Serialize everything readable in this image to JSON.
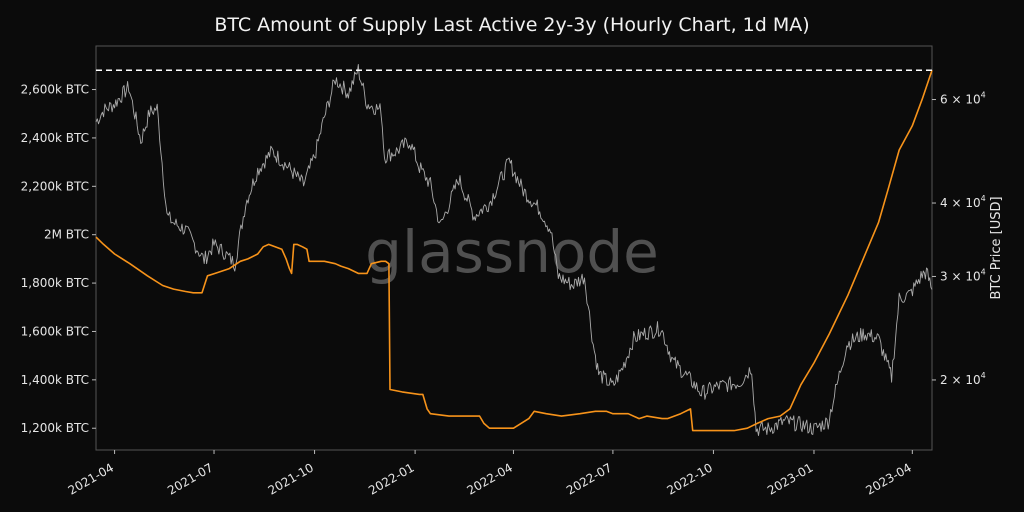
{
  "chart_data": {
    "type": "line",
    "title": "BTC Amount of Supply Last Active 2y-3y (Hourly Chart, 1d MA)",
    "watermark": "glassnode",
    "xlabel": "",
    "x_tick_labels": [
      "2021-04",
      "2021-07",
      "2021-10",
      "2022-01",
      "2022-04",
      "2022-07",
      "2022-10",
      "2023-01",
      "2023-04"
    ],
    "x_range": [
      "2021-03-15",
      "2023-04-19"
    ],
    "y_left": {
      "label": "",
      "range": [
        1110000,
        2780000
      ],
      "ticks": [
        {
          "value": 1200000,
          "label": "1,200k BTC"
        },
        {
          "value": 1400000,
          "label": "1,400k BTC"
        },
        {
          "value": 1600000,
          "label": "1,600k BTC"
        },
        {
          "value": 1800000,
          "label": "1,800k BTC"
        },
        {
          "value": 2000000,
          "label": "2M BTC"
        },
        {
          "value": 2200000,
          "label": "2,200k BTC"
        },
        {
          "value": 2400000,
          "label": "2,400k BTC"
        },
        {
          "value": 2600000,
          "label": "2,600k BTC"
        }
      ]
    },
    "y_right": {
      "label": "BTC Price [USD]",
      "scale": "log",
      "range": [
        15200,
        74000
      ],
      "ticks": [
        {
          "value": 20000,
          "base": "2",
          "exp": "4"
        },
        {
          "value": 30000,
          "base": "3",
          "exp": "4"
        },
        {
          "value": 40000,
          "base": "4",
          "exp": "4"
        },
        {
          "value": 60000,
          "base": "6",
          "exp": "4"
        }
      ]
    },
    "reference_line": {
      "value": 2680000,
      "style": "dashed",
      "color": "#ffffff"
    },
    "grid": false,
    "legend": "none",
    "series": [
      {
        "axis": "left",
        "color": "#f7931a",
        "x": [
          "2021-03-15",
          "2021-03-22",
          "2021-04-01",
          "2021-04-15",
          "2021-05-01",
          "2021-05-15",
          "2021-05-25",
          "2021-06-05",
          "2021-06-12",
          "2021-06-20",
          "2021-06-25",
          "2021-07-02",
          "2021-07-15",
          "2021-07-25",
          "2021-08-01",
          "2021-08-10",
          "2021-08-15",
          "2021-08-20",
          "2021-09-01",
          "2021-09-05",
          "2021-09-08",
          "2021-09-10",
          "2021-09-12",
          "2021-09-15",
          "2021-09-20",
          "2021-09-24",
          "2021-09-26",
          "2021-10-01",
          "2021-10-10",
          "2021-10-20",
          "2021-10-25",
          "2021-11-01",
          "2021-11-10",
          "2021-11-18",
          "2021-11-22",
          "2021-12-01",
          "2021-12-05",
          "2021-12-08",
          "2021-12-09",
          "2021-12-20",
          "2022-01-05",
          "2022-01-08",
          "2022-01-12",
          "2022-01-15",
          "2022-02-01",
          "2022-02-15",
          "2022-03-01",
          "2022-03-05",
          "2022-03-10",
          "2022-03-20",
          "2022-04-01",
          "2022-04-15",
          "2022-04-20",
          "2022-05-01",
          "2022-05-15",
          "2022-06-01",
          "2022-06-15",
          "2022-06-25",
          "2022-07-01",
          "2022-07-15",
          "2022-07-25",
          "2022-08-01",
          "2022-08-15",
          "2022-08-20",
          "2022-09-01",
          "2022-09-10",
          "2022-09-12",
          "2022-09-15",
          "2022-10-01",
          "2022-10-20",
          "2022-11-01",
          "2022-11-10",
          "2022-11-20",
          "2022-12-01",
          "2022-12-10",
          "2022-12-20",
          "2023-01-01",
          "2023-01-15",
          "2023-02-01",
          "2023-02-15",
          "2023-03-01",
          "2023-03-10",
          "2023-03-20",
          "2023-04-01",
          "2023-04-10",
          "2023-04-19"
        ],
        "values": [
          1990000,
          1960000,
          1920000,
          1880000,
          1830000,
          1790000,
          1775000,
          1765000,
          1760000,
          1760000,
          1830000,
          1840000,
          1860000,
          1890000,
          1900000,
          1920000,
          1950000,
          1960000,
          1940000,
          1900000,
          1860000,
          1840000,
          1960000,
          1960000,
          1950000,
          1940000,
          1890000,
          1890000,
          1890000,
          1880000,
          1870000,
          1860000,
          1840000,
          1840000,
          1880000,
          1890000,
          1890000,
          1880000,
          1360000,
          1350000,
          1340000,
          1340000,
          1280000,
          1260000,
          1250000,
          1250000,
          1250000,
          1220000,
          1200000,
          1200000,
          1200000,
          1240000,
          1270000,
          1260000,
          1250000,
          1260000,
          1270000,
          1270000,
          1260000,
          1260000,
          1240000,
          1250000,
          1240000,
          1240000,
          1260000,
          1280000,
          1190000,
          1190000,
          1190000,
          1190000,
          1200000,
          1220000,
          1240000,
          1250000,
          1280000,
          1380000,
          1470000,
          1590000,
          1750000,
          1900000,
          2050000,
          2190000,
          2350000,
          2450000,
          2560000,
          2680000
        ]
      },
      {
        "axis": "right",
        "color": "#aaaaaa",
        "x": [
          "2021-03-15",
          "2021-03-22",
          "2021-04-01",
          "2021-04-14",
          "2021-04-25",
          "2021-05-03",
          "2021-05-10",
          "2021-05-19",
          "2021-05-25",
          "2021-06-05",
          "2021-06-22",
          "2021-07-01",
          "2021-07-10",
          "2021-07-20",
          "2021-07-30",
          "2021-08-10",
          "2021-08-23",
          "2021-09-07",
          "2021-09-21",
          "2021-10-01",
          "2021-10-10",
          "2021-10-20",
          "2021-11-01",
          "2021-11-10",
          "2021-11-18",
          "2021-12-01",
          "2021-12-04",
          "2021-12-15",
          "2021-12-27",
          "2022-01-05",
          "2022-01-15",
          "2022-01-24",
          "2022-02-10",
          "2022-02-24",
          "2022-03-10",
          "2022-03-28",
          "2022-04-10",
          "2022-04-25",
          "2022-05-05",
          "2022-05-12",
          "2022-05-25",
          "2022-06-05",
          "2022-06-13",
          "2022-06-18",
          "2022-07-01",
          "2022-07-10",
          "2022-07-20",
          "2022-07-30",
          "2022-08-14",
          "2022-08-25",
          "2022-09-10",
          "2022-09-20",
          "2022-10-05",
          "2022-10-25",
          "2022-11-05",
          "2022-11-09",
          "2022-11-20",
          "2022-12-05",
          "2022-12-20",
          "2023-01-01",
          "2023-01-14",
          "2023-01-31",
          "2023-02-16",
          "2023-03-01",
          "2023-03-10",
          "2023-03-13",
          "2023-03-20",
          "2023-03-30",
          "2023-04-10",
          "2023-04-14",
          "2023-04-19"
        ],
        "values": [
          55000,
          57500,
          59000,
          63000,
          51000,
          57000,
          58000,
          38000,
          37000,
          36000,
          32000,
          34000,
          33000,
          31500,
          40000,
          45500,
          49000,
          46000,
          43000,
          48000,
          56000,
          65000,
          61500,
          67500,
          59000,
          57500,
          48000,
          49000,
          51000,
          46000,
          43000,
          36500,
          44000,
          38000,
          40000,
          47000,
          42000,
          39000,
          36000,
          30000,
          29000,
          30000,
          23000,
          20500,
          19500,
          21000,
          23500,
          24000,
          24500,
          21500,
          20000,
          19000,
          19500,
          19800,
          21000,
          16500,
          16500,
          17000,
          16800,
          16500,
          17000,
          23000,
          24000,
          23500,
          21000,
          20200,
          27500,
          28000,
          30200,
          30500,
          28500
        ]
      }
    ]
  }
}
